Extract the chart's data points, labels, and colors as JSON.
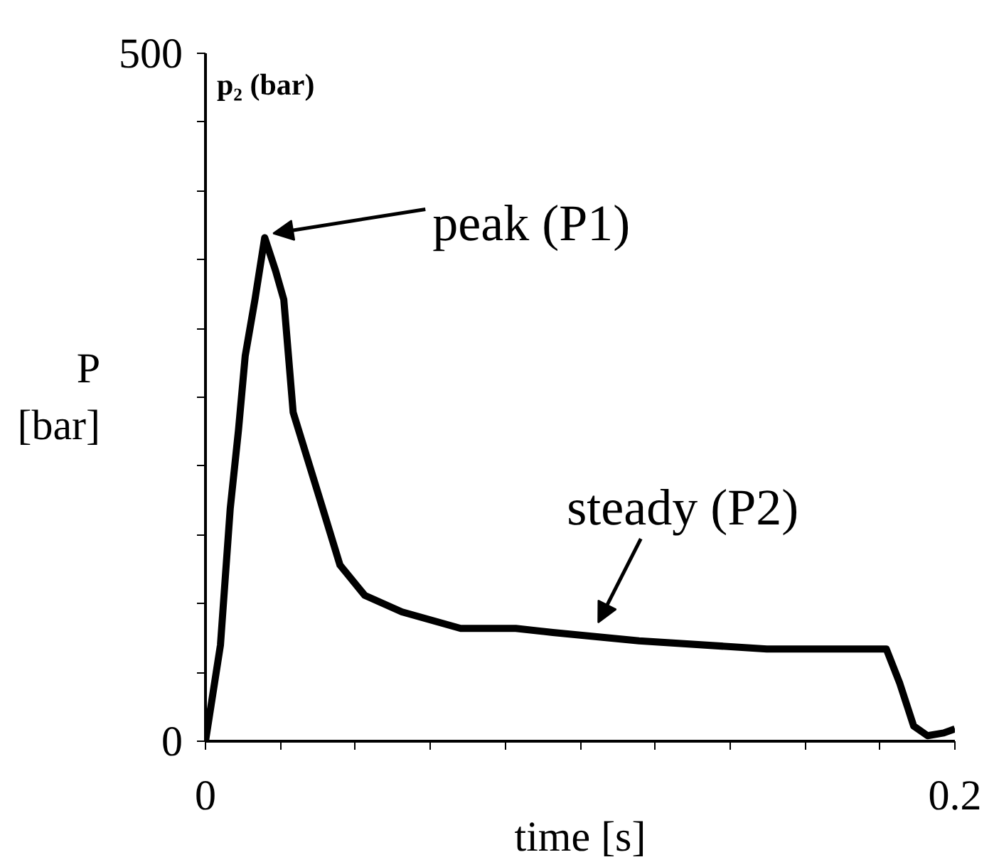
{
  "chart_data": {
    "type": "line",
    "title": "p₂ (bar)",
    "xlabel": "time [s]",
    "ylabel": "P\n[bar]",
    "x": [
      0,
      0.004,
      0.0066,
      0.0088,
      0.0106,
      0.0132,
      0.0158,
      0.0187,
      0.0209,
      0.0234,
      0.0304,
      0.0359,
      0.0425,
      0.0524,
      0.0681,
      0.0828,
      0.0927,
      0.1157,
      0.1498,
      0.1817,
      0.1853,
      0.189,
      0.1927,
      0.197,
      0.2
    ],
    "series": [
      {
        "color": "#000000",
        "values": [
          0,
          70,
          169,
          226,
          280,
          321,
          366,
          342,
          321,
          239,
          177,
          128,
          106,
          94,
          82,
          82,
          79,
          73,
          67,
          67,
          42,
          11,
          4,
          6,
          9
        ]
      }
    ],
    "xlim": [
      0,
      0.2
    ],
    "ylim": [
      0,
      500
    ],
    "xticks": [
      0,
      {
        "value": 0.02,
        "label": null
      },
      {
        "value": 0.04,
        "label": null
      },
      {
        "value": 0.06,
        "label": null
      },
      {
        "value": 0.08,
        "label": null
      },
      {
        "value": 0.1,
        "label": null
      },
      {
        "value": 0.12,
        "label": null
      },
      {
        "value": 0.14,
        "label": null
      },
      {
        "value": 0.16,
        "label": null
      },
      {
        "value": 0.18,
        "label": null
      },
      0.2
    ],
    "yticks": [
      0,
      {
        "value": 50,
        "label": null
      },
      {
        "value": 100,
        "label": null
      },
      {
        "value": 150,
        "label": null
      },
      {
        "value": 200,
        "label": null
      },
      {
        "value": 250,
        "label": null
      },
      {
        "value": 300,
        "label": null
      },
      {
        "value": 350,
        "label": null
      },
      {
        "value": 400,
        "label": null
      },
      {
        "value": 450,
        "label": null
      },
      500
    ],
    "annotations": [
      {
        "text": "peak (P1)",
        "x": 0.0158,
        "y": 366
      },
      {
        "text": "steady (P2)",
        "x": 0.1048,
        "y": 80
      }
    ],
    "grid": false,
    "marker": "none",
    "line_style": "solid"
  }
}
